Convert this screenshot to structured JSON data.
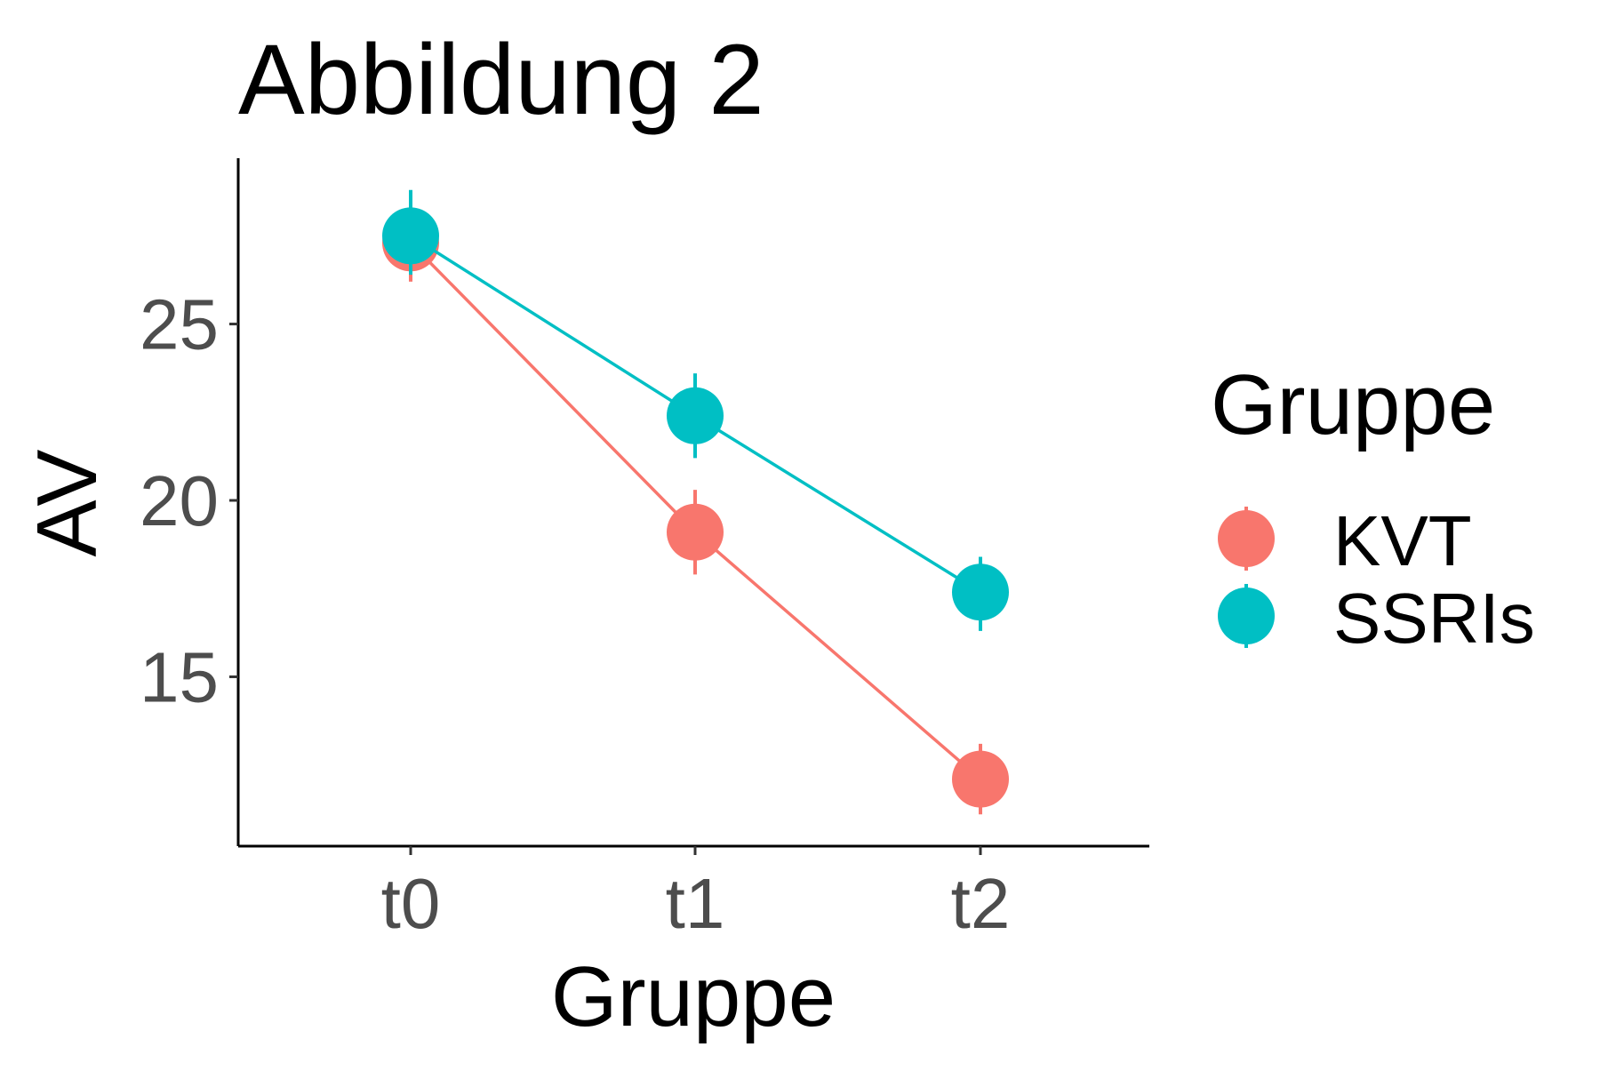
{
  "chart_data": {
    "type": "line",
    "title": "Abbildung 2",
    "xlabel": "Gruppe",
    "ylabel": "AV",
    "categories": [
      "t0",
      "t1",
      "t2"
    ],
    "yticks": [
      15,
      20,
      25
    ],
    "ylim": [
      10.2,
      29.7
    ],
    "legend": {
      "title": "Gruppe",
      "position": "right"
    },
    "series": [
      {
        "name": "KVT",
        "color": "#F8766D",
        "values": [
          27.3,
          19.1,
          12.1
        ],
        "error_low": [
          26.2,
          17.9,
          11.1
        ],
        "error_high": [
          28.4,
          20.3,
          13.1
        ]
      },
      {
        "name": "SSRIs",
        "color": "#00BFC4",
        "values": [
          27.5,
          22.4,
          17.4
        ],
        "error_low": [
          26.4,
          21.2,
          16.3
        ],
        "error_high": [
          28.8,
          23.6,
          18.4
        ]
      }
    ]
  }
}
